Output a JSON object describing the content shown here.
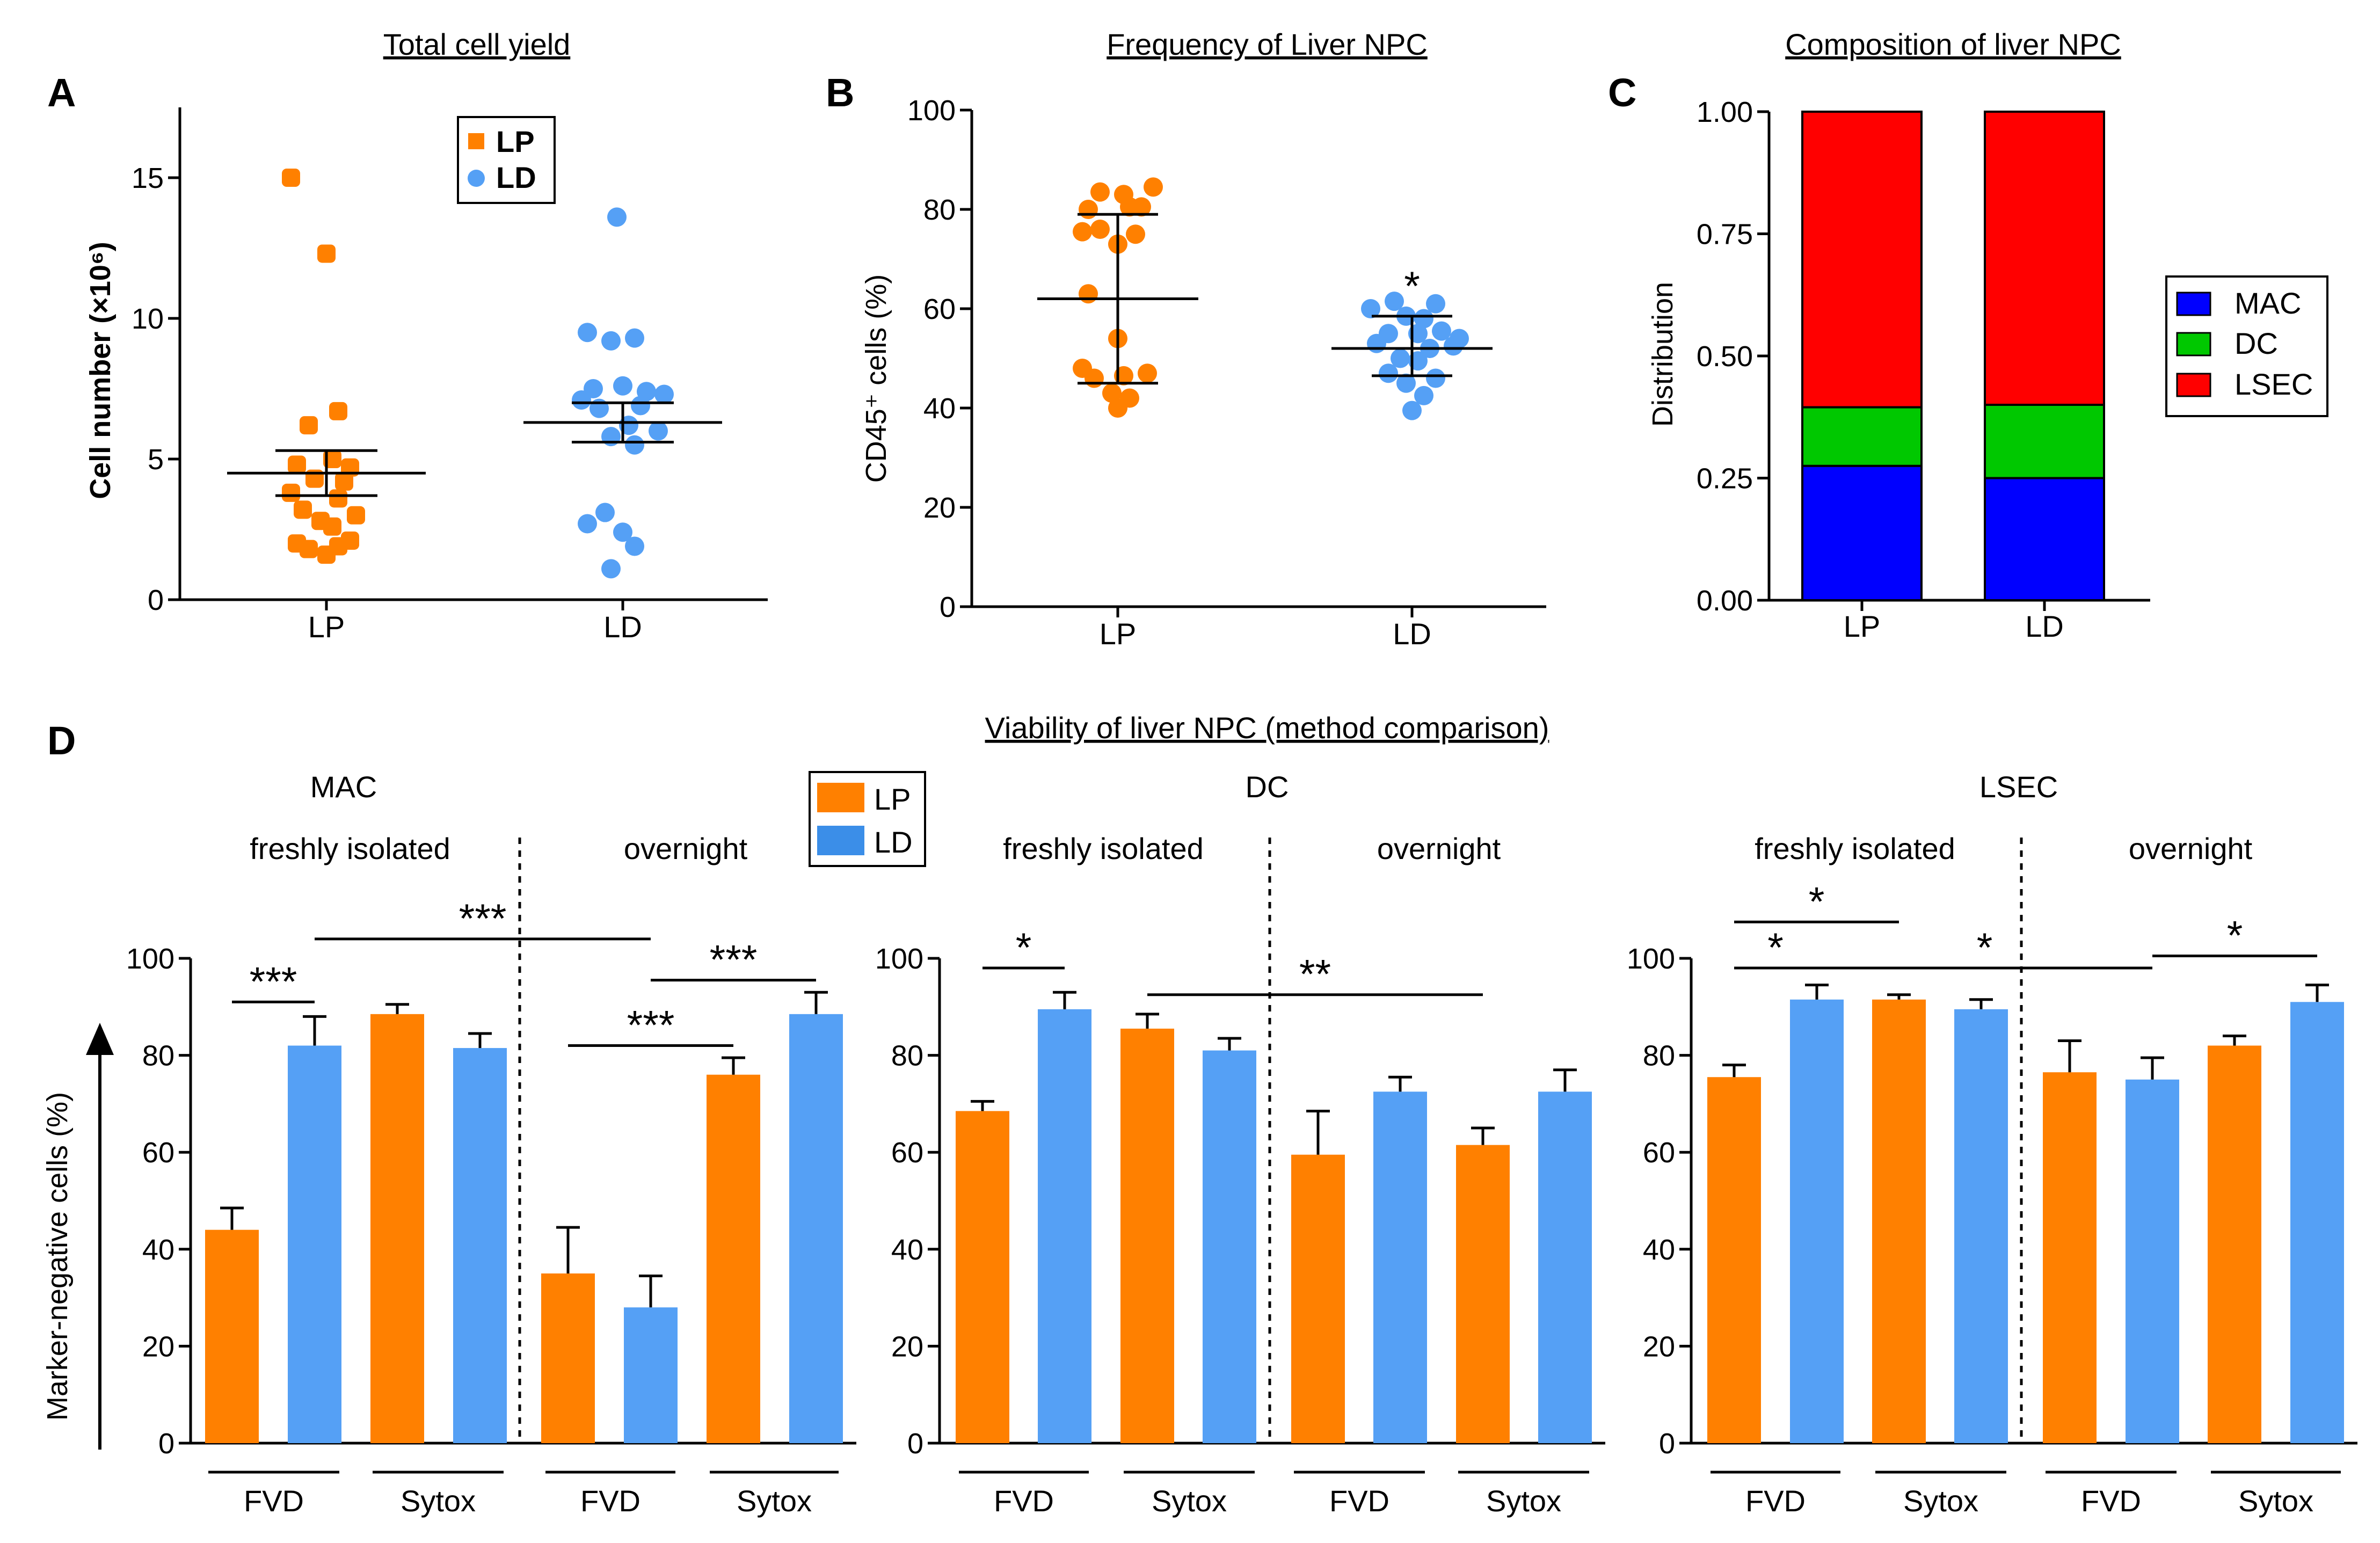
{
  "colors": {
    "LP": "#ff8000",
    "LD": "#55a0f5",
    "MAC": "#0000ff",
    "DC": "#00c800",
    "LSEC": "#ff0000",
    "axis": "#000000"
  },
  "chart_data": [
    {
      "panel": "A",
      "type": "scatter",
      "title": "Total cell yield",
      "xlabel": "",
      "ylabel": "Cell number (×10⁶)",
      "ylim": [
        0,
        17.5
      ],
      "yticks": [
        0,
        5,
        10,
        15
      ],
      "categories": [
        "LP",
        "LD"
      ],
      "legend": [
        {
          "name": "LP",
          "marker": "square"
        },
        {
          "name": "LD",
          "marker": "circle"
        }
      ],
      "series": [
        {
          "name": "LP",
          "points": [
            [
              -0.3,
              15.0
            ],
            [
              0.0,
              12.3
            ],
            [
              0.1,
              6.7
            ],
            [
              -0.15,
              6.2
            ],
            [
              0.05,
              5.0
            ],
            [
              -0.25,
              4.8
            ],
            [
              0.2,
              4.7
            ],
            [
              -0.1,
              4.3
            ],
            [
              0.15,
              4.2
            ],
            [
              -0.3,
              3.8
            ],
            [
              0.1,
              3.6
            ],
            [
              -0.2,
              3.2
            ],
            [
              0.25,
              3.0
            ],
            [
              -0.05,
              2.8
            ],
            [
              0.05,
              2.6
            ],
            [
              -0.25,
              2.0
            ],
            [
              0.1,
              1.9
            ],
            [
              0.2,
              2.1
            ],
            [
              -0.15,
              1.8
            ],
            [
              0.0,
              1.6
            ]
          ],
          "mean": 4.5,
          "err_low": 3.7,
          "err_high": 5.3
        },
        {
          "name": "LD",
          "points": [
            [
              -0.05,
              13.6
            ],
            [
              -0.3,
              9.5
            ],
            [
              -0.1,
              9.2
            ],
            [
              0.1,
              9.3
            ],
            [
              -0.25,
              7.5
            ],
            [
              0.0,
              7.6
            ],
            [
              0.2,
              7.4
            ],
            [
              0.35,
              7.3
            ],
            [
              -0.35,
              7.1
            ],
            [
              0.15,
              6.9
            ],
            [
              -0.2,
              6.8
            ],
            [
              0.05,
              6.2
            ],
            [
              0.3,
              6.0
            ],
            [
              -0.1,
              5.8
            ],
            [
              0.1,
              5.5
            ],
            [
              -0.15,
              3.1
            ],
            [
              -0.3,
              2.7
            ],
            [
              0.0,
              2.4
            ],
            [
              0.1,
              1.9
            ],
            [
              -0.1,
              1.1
            ]
          ],
          "mean": 6.3,
          "err_low": 5.6,
          "err_high": 7.0
        }
      ]
    },
    {
      "panel": "B",
      "type": "scatter",
      "title": "Frequency of Liver NPC",
      "xlabel": "",
      "ylabel": "CD45⁺ cells (%)",
      "ylim": [
        0,
        100
      ],
      "yticks": [
        0,
        20,
        40,
        60,
        80,
        100
      ],
      "categories": [
        "LP",
        "LD"
      ],
      "annotations": [
        {
          "category": "LD",
          "text": "*"
        }
      ],
      "series": [
        {
          "name": "LP",
          "points": [
            [
              -0.15,
              83.5
            ],
            [
              0.05,
              83.0
            ],
            [
              0.3,
              84.5
            ],
            [
              -0.25,
              80.0
            ],
            [
              0.1,
              80.5
            ],
            [
              0.2,
              80.5
            ],
            [
              -0.15,
              76.0
            ],
            [
              -0.3,
              75.5
            ],
            [
              0.0,
              73.0
            ],
            [
              0.15,
              75.0
            ],
            [
              -0.25,
              63.0
            ],
            [
              0.0,
              54.0
            ],
            [
              -0.3,
              48.0
            ],
            [
              -0.2,
              46.0
            ],
            [
              0.05,
              46.5
            ],
            [
              0.25,
              47.0
            ],
            [
              -0.05,
              43.0
            ],
            [
              0.1,
              42.0
            ],
            [
              0.0,
              40.0
            ]
          ],
          "mean": 62,
          "err_low": 45,
          "err_high": 79
        },
        {
          "name": "LD",
          "points": [
            [
              -0.15,
              61.5
            ],
            [
              0.2,
              61.0
            ],
            [
              -0.35,
              60.0
            ],
            [
              -0.05,
              58.5
            ],
            [
              0.1,
              58.0
            ],
            [
              -0.2,
              55.0
            ],
            [
              0.05,
              55.0
            ],
            [
              0.25,
              55.5
            ],
            [
              0.4,
              54.0
            ],
            [
              -0.3,
              53.0
            ],
            [
              0.15,
              52.0
            ],
            [
              0.35,
              52.5
            ],
            [
              -0.1,
              50.0
            ],
            [
              0.05,
              49.5
            ],
            [
              -0.2,
              47.0
            ],
            [
              0.2,
              46.0
            ],
            [
              -0.05,
              45.0
            ],
            [
              0.1,
              42.5
            ],
            [
              0.0,
              39.5
            ]
          ],
          "mean": 52,
          "err_low": 46.5,
          "err_high": 58.5
        }
      ]
    },
    {
      "panel": "C",
      "type": "bar",
      "stacked": true,
      "title": "Composition of liver NPC",
      "xlabel": "",
      "ylabel": "Distribution",
      "ylim": [
        0,
        1
      ],
      "yticks": [
        "0.00",
        "0.25",
        "0.50",
        "0.75",
        "1.00"
      ],
      "categories": [
        "LP",
        "LD"
      ],
      "legend_position": "right",
      "series": [
        {
          "name": "MAC",
          "values": [
            0.275,
            0.25
          ]
        },
        {
          "name": "DC",
          "values": [
            0.12,
            0.15
          ]
        },
        {
          "name": "LSEC",
          "values": [
            0.605,
            0.6
          ]
        }
      ]
    },
    {
      "panel": "D",
      "type": "bar",
      "title": "Viability of liver NPC (method comparison)",
      "ylabel": "Marker-negative cells (%)",
      "ylim": [
        0,
        100
      ],
      "yticks": [
        0,
        20,
        40,
        60,
        80,
        100
      ],
      "legend": [
        "LP",
        "LD"
      ],
      "conditions": [
        "freshly isolated",
        "overnight"
      ],
      "groups": [
        "FVD",
        "Sytox",
        "FVD",
        "Sytox"
      ],
      "subplots": [
        {
          "name": "MAC",
          "bars": [
            {
              "series": "LP",
              "value": 44,
              "err": 4.5
            },
            {
              "series": "LD",
              "value": 82,
              "err": 6
            },
            {
              "series": "LP",
              "value": 88.5,
              "err": 2
            },
            {
              "series": "LD",
              "value": 81.5,
              "err": 3
            },
            {
              "series": "LP",
              "value": 35,
              "err": 9.5
            },
            {
              "series": "LD",
              "value": 28,
              "err": 6.5
            },
            {
              "series": "LP",
              "value": 76,
              "err": 3.5
            },
            {
              "series": "LD",
              "value": 88.5,
              "err": 4.5
            }
          ],
          "significance": [
            {
              "from": 0,
              "to": 1,
              "y": 91,
              "text": "***"
            },
            {
              "from": 1,
              "to": 5,
              "y": 104,
              "text": "***"
            },
            {
              "from": 4,
              "to": 6,
              "y": 82,
              "text": "***"
            },
            {
              "from": 5,
              "to": 7,
              "y": 95.5,
              "text": "***"
            }
          ]
        },
        {
          "name": "DC",
          "bars": [
            {
              "series": "LP",
              "value": 68.5,
              "err": 2
            },
            {
              "series": "LD",
              "value": 89.5,
              "err": 3.5
            },
            {
              "series": "LP",
              "value": 85.5,
              "err": 3
            },
            {
              "series": "LD",
              "value": 81,
              "err": 2.5
            },
            {
              "series": "LP",
              "value": 59.5,
              "err": 9
            },
            {
              "series": "LD",
              "value": 72.5,
              "err": 3
            },
            {
              "series": "LP",
              "value": 61.5,
              "err": 3.5
            },
            {
              "series": "LD",
              "value": 72.5,
              "err": 4.5
            }
          ],
          "significance": [
            {
              "from": 0,
              "to": 1,
              "y": 98,
              "text": "*"
            },
            {
              "from": 2,
              "to": 6,
              "y": 92.5,
              "text": "**"
            }
          ]
        },
        {
          "name": "LSEC",
          "bars": [
            {
              "series": "LP",
              "value": 75.5,
              "err": 2.5
            },
            {
              "series": "LD",
              "value": 91.5,
              "err": 3
            },
            {
              "series": "LP",
              "value": 91.5,
              "err": 1
            },
            {
              "series": "LD",
              "value": 89.5,
              "err": 2
            },
            {
              "series": "LP",
              "value": 76.5,
              "err": 6.5
            },
            {
              "series": "LD",
              "value": 75,
              "err": 4.5
            },
            {
              "series": "LP",
              "value": 82,
              "err": 2
            },
            {
              "series": "LD",
              "value": 91,
              "err": 3.5
            }
          ],
          "significance": [
            {
              "from": 0,
              "to": 2,
              "y": 107.5,
              "text": "*"
            },
            {
              "from": 0,
              "to": 1,
              "y": 98,
              "text": "*"
            },
            {
              "from": 1,
              "to": 5,
              "y": 98,
              "text": "*"
            },
            {
              "from": 5,
              "to": 7,
              "y": 100.5,
              "text": "*"
            }
          ]
        }
      ]
    }
  ]
}
